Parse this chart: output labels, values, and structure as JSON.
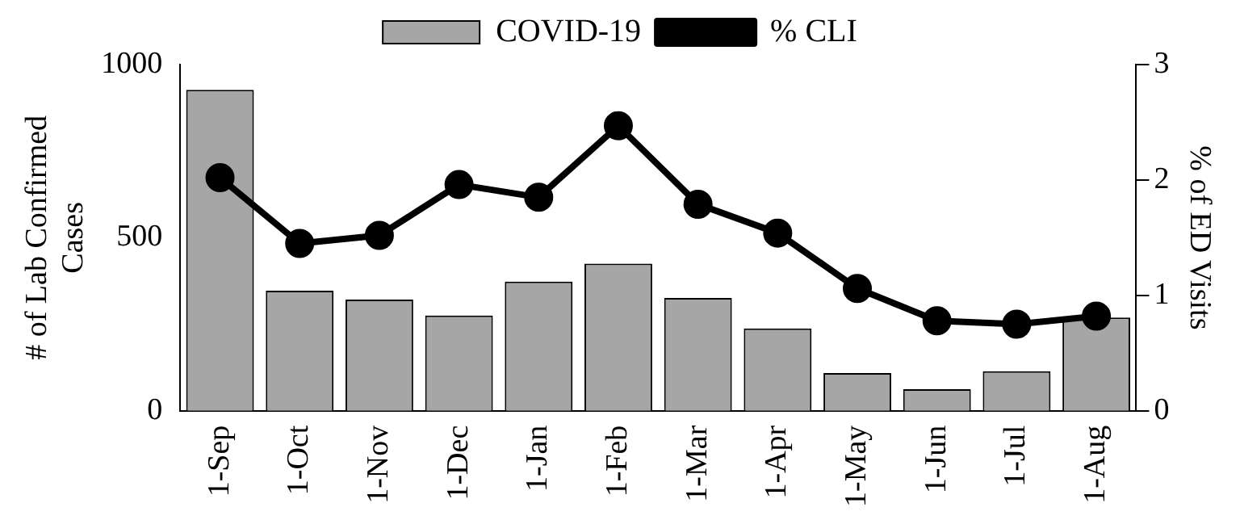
{
  "chart_data": {
    "type": "bar",
    "categories": [
      "1-Sep",
      "1-Oct",
      "1-Nov",
      "1-Dec",
      "1-Jan",
      "1-Feb",
      "1-Mar",
      "1-Apr",
      "1-May",
      "1-Jun",
      "1-Jul",
      "1-Aug"
    ],
    "ylabel": "# of Lab Confirmed Cases",
    "y2label": "% of ED Visits",
    "ylim": [
      0,
      1000
    ],
    "yticks": [
      0,
      500,
      1000
    ],
    "y2lim": [
      0,
      3
    ],
    "y2ticks": [
      0,
      1,
      2,
      3
    ],
    "series": [
      {
        "name": "COVID-19",
        "color": "#a6a6a6",
        "values": [
          927,
          347,
          321,
          275,
          373,
          425,
          326,
          238,
          109,
          62,
          114,
          269
        ]
      },
      {
        "name": "% CLI",
        "type": "line",
        "axis": "y2",
        "color": "#000000",
        "values": [
          2.02,
          1.45,
          1.52,
          1.96,
          1.85,
          2.47,
          1.79,
          1.54,
          1.06,
          0.78,
          0.75,
          0.82
        ]
      }
    ],
    "legend": "top",
    "grid": false,
    "marker": "circle",
    "line_style": "solid"
  }
}
